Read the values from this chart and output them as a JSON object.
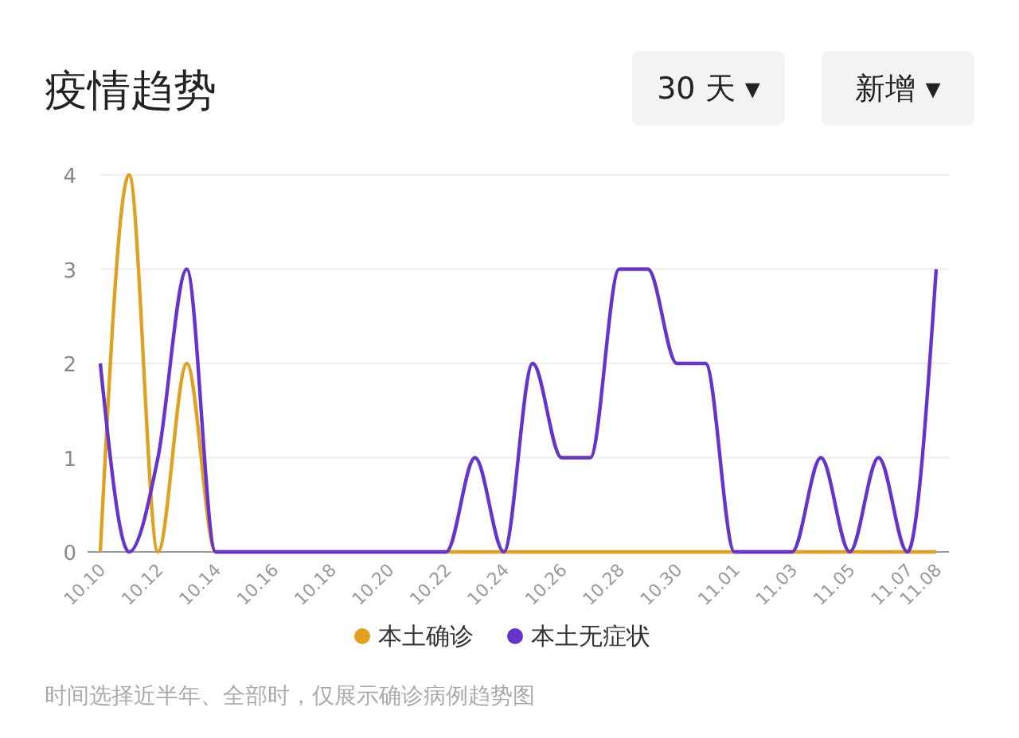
{
  "chart_data": {
    "type": "line",
    "title": "疫情趋势",
    "categories": [
      "10.10",
      null,
      "10.12",
      null,
      "10.14",
      null,
      "10.16",
      null,
      "10.18",
      null,
      "10.20",
      null,
      "10.22",
      null,
      "10.24",
      null,
      "10.26",
      null,
      "10.28",
      null,
      "10.30",
      null,
      "11.01",
      null,
      "11.03",
      null,
      "11.05",
      null,
      "11.07",
      "11.08"
    ],
    "series": [
      {
        "name": "本土确诊",
        "color": "#e0a020",
        "values": [
          0,
          4,
          0,
          2,
          0,
          0,
          0,
          0,
          0,
          0,
          0,
          0,
          0,
          0,
          0,
          0,
          0,
          0,
          0,
          0,
          0,
          0,
          0,
          0,
          0,
          0,
          0,
          0,
          0,
          0
        ]
      },
      {
        "name": "本土无症状",
        "color": "#6633cc",
        "values": [
          2,
          0,
          1,
          3,
          0,
          0,
          0,
          0,
          0,
          0,
          0,
          0,
          0,
          1,
          0,
          2,
          1,
          1,
          3,
          3,
          2,
          2,
          0,
          0,
          0,
          1,
          0,
          1,
          0,
          3
        ]
      }
    ],
    "ylim": [
      0,
      4
    ],
    "yticks": [
      0,
      1,
      2,
      3,
      4
    ],
    "grid": "y",
    "legend": "bottom",
    "marker": "none",
    "line_style": "solid",
    "annotations": [
      "30 天 ▾",
      "新增 ▾",
      "时间选择近半年、全部时，仅展示确诊病例趋势图"
    ]
  }
}
